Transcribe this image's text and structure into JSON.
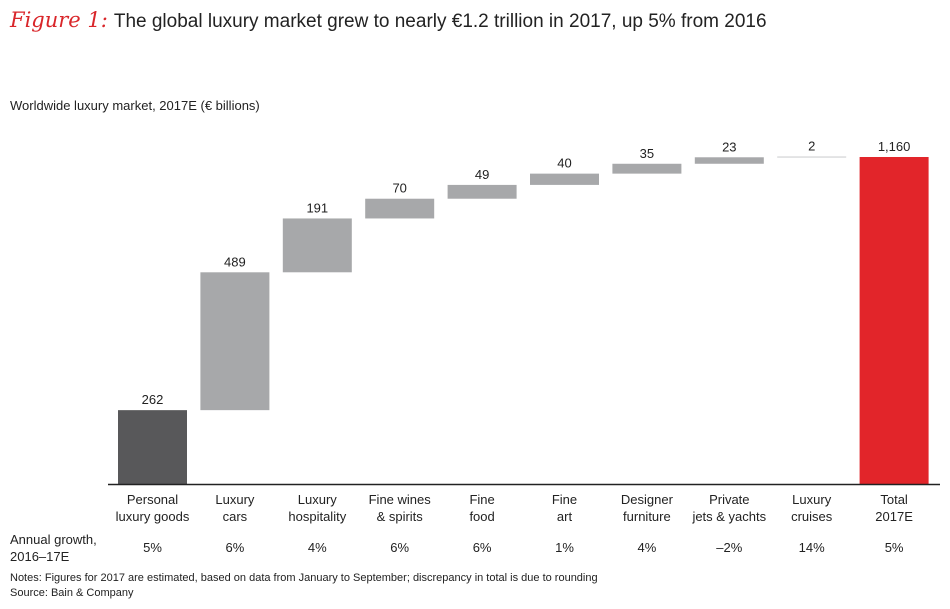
{
  "figure": {
    "label": "Figure 1:",
    "title": "The global luxury market grew to nearly €1.2 trillion in 2017, up 5% from 2016"
  },
  "chart_data": {
    "type": "bar",
    "subtype": "waterfall",
    "title": "Worldwide luxury market, 2017E (€ billions)",
    "categories": [
      [
        "Personal",
        "luxury goods"
      ],
      [
        "Luxury",
        "cars"
      ],
      [
        "Luxury",
        "hospitality"
      ],
      [
        "Fine wines",
        "& spirits"
      ],
      [
        "Fine",
        "food"
      ],
      [
        "Fine",
        "art"
      ],
      [
        "Designer",
        "furniture"
      ],
      [
        "Private",
        "jets & yachts"
      ],
      [
        "Luxury",
        "cruises"
      ],
      [
        "Total",
        "2017E"
      ]
    ],
    "values": [
      262,
      489,
      191,
      70,
      49,
      40,
      35,
      23,
      2,
      1160
    ],
    "value_labels": [
      "262",
      "489",
      "191",
      "70",
      "49",
      "40",
      "35",
      "23",
      "2",
      "1,160"
    ],
    "bar_roles": [
      "first",
      "step",
      "step",
      "step",
      "step",
      "step",
      "step",
      "step",
      "step",
      "total"
    ],
    "colors": {
      "first": "#58585a",
      "step": "#a7a8aa",
      "total": "#e2252a",
      "axis": "#222222"
    },
    "ylim": [
      0,
      1160
    ],
    "grid": false,
    "legend": "none",
    "growth_label": [
      "Annual growth,",
      "2016–17E"
    ],
    "annual_growth": [
      "5%",
      "6%",
      "4%",
      "6%",
      "6%",
      "1%",
      "4%",
      "–2%",
      "14%",
      "5%"
    ]
  },
  "notes": {
    "notes": "Notes: Figures for 2017 are estimated, based on data from January to September; discrepancy in total is due to rounding",
    "source": "Source: Bain & Company"
  }
}
